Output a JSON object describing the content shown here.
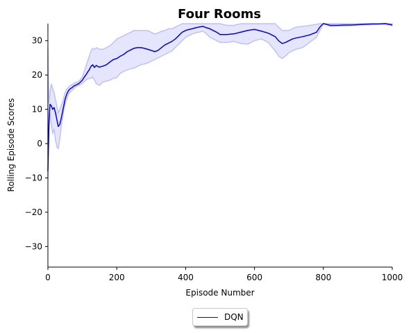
{
  "chart_data": {
    "type": "line",
    "title": "Four Rooms",
    "xlabel": "Episode Number",
    "ylabel": "Rolling Episode Scores",
    "xlim": [
      0,
      1000
    ],
    "ylim": [
      -36,
      35
    ],
    "xticks": [
      0,
      200,
      400,
      600,
      800,
      1000
    ],
    "yticks": [
      -30,
      -20,
      -10,
      0,
      10,
      20,
      30
    ],
    "grid": false,
    "legend_position": "bottom-center",
    "series": [
      {
        "name": "DQN",
        "color": "#0000ee",
        "x": [
          0,
          3,
          6,
          10,
          14,
          18,
          22,
          26,
          30,
          34,
          38,
          42,
          46,
          50,
          55,
          60,
          65,
          70,
          75,
          80,
          85,
          90,
          95,
          100,
          105,
          110,
          115,
          120,
          125,
          130,
          135,
          140,
          145,
          150,
          155,
          160,
          170,
          180,
          190,
          200,
          210,
          220,
          230,
          240,
          250,
          260,
          270,
          280,
          290,
          300,
          310,
          320,
          330,
          340,
          350,
          360,
          370,
          380,
          390,
          400,
          410,
          420,
          430,
          440,
          450,
          460,
          470,
          480,
          490,
          500,
          520,
          540,
          560,
          580,
          600,
          620,
          640,
          660,
          670,
          680,
          690,
          700,
          710,
          720,
          740,
          760,
          780,
          790,
          800,
          820,
          840,
          860,
          880,
          900,
          920,
          940,
          960,
          980,
          1000
        ],
        "y": [
          -8,
          6,
          11.5,
          11,
          10,
          10.5,
          9,
          7,
          5,
          5.5,
          7,
          9,
          11,
          13,
          14.5,
          15.5,
          16,
          16.3,
          16.8,
          17,
          17.3,
          17.5,
          18,
          18.5,
          19.3,
          20,
          20.8,
          21.5,
          22.5,
          23,
          22.2,
          22.8,
          22.5,
          22.3,
          22.5,
          22.6,
          23,
          23.8,
          24.5,
          24.8,
          25.5,
          26,
          26.8,
          27.3,
          27.8,
          28,
          28,
          27.8,
          27.5,
          27.2,
          26.8,
          27.2,
          28,
          28.8,
          29.3,
          29.8,
          30.5,
          31.5,
          32.5,
          33,
          33.3,
          33.5,
          33.8,
          34,
          34.2,
          33.8,
          33.5,
          33,
          32.5,
          31.8,
          31.8,
          32,
          32.5,
          33,
          33.3,
          32.8,
          32.2,
          31.2,
          30,
          29.2,
          29.5,
          30,
          30.5,
          30.8,
          31.2,
          31.7,
          32.5,
          34,
          35,
          34.5,
          34.5,
          34.6,
          34.6,
          34.7,
          34.8,
          34.9,
          34.9,
          35,
          34.6
        ],
        "lower": [
          -10,
          5,
          9,
          5,
          3,
          4,
          1,
          -1,
          -1.5,
          1,
          4,
          7,
          9.5,
          11.5,
          13,
          14.5,
          15,
          15.5,
          16,
          16.5,
          16.8,
          17,
          17.3,
          17.5,
          18,
          18.5,
          18.8,
          19,
          19,
          19.5,
          18.5,
          17.5,
          17.2,
          17,
          17.5,
          18,
          18.2,
          18.5,
          19,
          19.2,
          20.5,
          21,
          21.5,
          21.8,
          22,
          22.5,
          23,
          23.2,
          23.5,
          24,
          24.5,
          25,
          25.5,
          26,
          26.5,
          27,
          28,
          29,
          30,
          31,
          31.5,
          32,
          32.3,
          32.5,
          32.8,
          32,
          31,
          30.5,
          30,
          29.5,
          29.5,
          29.8,
          29.2,
          29,
          30,
          30.5,
          29.5,
          27,
          25.5,
          24.8,
          25.5,
          26.5,
          27,
          27.5,
          28,
          29.5,
          31,
          33,
          35,
          34.2,
          34.3,
          34.3,
          34.4,
          34.5,
          34.6,
          34.7,
          34.8,
          34.8,
          34.4
        ],
        "upper": [
          28,
          12,
          15,
          17.5,
          16,
          15,
          13,
          11,
          9,
          10,
          11,
          12,
          13.5,
          15,
          16,
          16.5,
          17,
          17.2,
          17.6,
          17.8,
          18,
          18.3,
          18.8,
          19.5,
          21,
          22.5,
          24,
          25.5,
          27,
          27.8,
          27.5,
          28,
          27.8,
          27.5,
          27.6,
          27.5,
          28,
          28.5,
          29.5,
          30.5,
          31,
          31.5,
          32,
          32.5,
          33,
          33,
          33,
          33,
          33,
          32.5,
          32,
          32.3,
          32.8,
          33,
          33.5,
          33.5,
          34,
          34.5,
          35,
          35,
          35,
          35,
          35,
          35,
          35,
          35,
          35,
          35,
          35,
          35,
          34.5,
          34.5,
          35,
          35,
          35,
          35,
          35,
          35,
          34,
          33,
          33,
          33,
          33.5,
          34,
          34.2,
          34.5,
          34.8,
          35,
          35,
          35,
          35,
          35,
          35,
          35,
          35,
          35,
          35,
          35,
          35
        ]
      }
    ]
  }
}
